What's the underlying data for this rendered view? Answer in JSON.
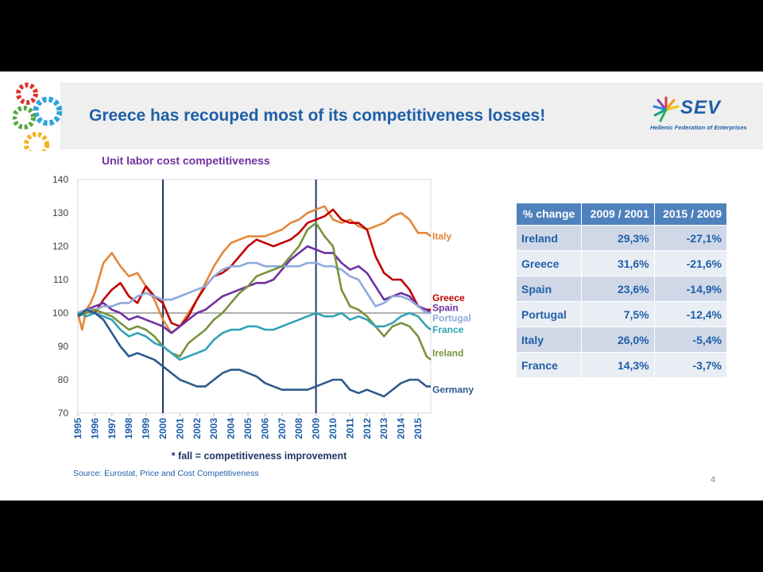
{
  "slide": {
    "title": "Greece has recouped most of its competitiveness losses!",
    "logo_text": "SEV",
    "logo_subtitle": "Hellenic Federation of Enterprises",
    "source": "Source: Eurostat, Price and Cost Competitiveness",
    "page_number": "4"
  },
  "table": {
    "headers": [
      "% change",
      "2009 / 2001",
      "2015 / 2009"
    ],
    "rows": [
      [
        "Ireland",
        "29,3%",
        "-27,1%"
      ],
      [
        "Greece",
        "31,6%",
        "-21,6%"
      ],
      [
        "Spain",
        "23,6%",
        "-14,9%"
      ],
      [
        "Portugal",
        "7,5%",
        "-12,4%"
      ],
      [
        "Italy",
        "26,0%",
        "-5,4%"
      ],
      [
        "France",
        "14,3%",
        "-3,7%"
      ]
    ]
  },
  "chart_data": {
    "type": "line",
    "title": "Unit labor cost competitiveness",
    "xlabel": "* fall = competitiveness improvement",
    "ylabel": "",
    "ylim": [
      70,
      140
    ],
    "yticks": [
      70,
      80,
      90,
      100,
      110,
      120,
      130,
      140
    ],
    "xlim": [
      1995,
      2015.75
    ],
    "xticks": [
      "1995",
      "1996",
      "1997",
      "1998",
      "1999",
      "2000",
      "2001",
      "2002",
      "2003",
      "2004",
      "2005",
      "2006",
      "2007",
      "2008",
      "2009",
      "2010",
      "2011",
      "2012",
      "2013",
      "2014",
      "2015"
    ],
    "baseline": 100,
    "vertical_lines": [
      2000,
      2009
    ],
    "grid": false,
    "legend": "labels at line ends",
    "series": [
      {
        "name": "Italy",
        "color": "#e3873a",
        "x": [
          1995,
          1995.25,
          1995.5,
          1995.75,
          1996,
          1996.5,
          1997,
          1997.5,
          1998,
          1998.5,
          1999,
          1999.5,
          2000,
          2000.5,
          2001,
          2001.5,
          2002,
          2002.5,
          2003,
          2003.5,
          2004,
          2004.5,
          2005,
          2005.5,
          2006,
          2006.5,
          2007,
          2007.5,
          2008,
          2008.5,
          2009,
          2009.5,
          2010,
          2010.5,
          2011,
          2011.5,
          2012,
          2012.5,
          2013,
          2013.5,
          2014,
          2014.5,
          2015,
          2015.5,
          2015.75
        ],
        "y": [
          100,
          95,
          101,
          103,
          106,
          115,
          118,
          114,
          111,
          112,
          108,
          104,
          98,
          94,
          96,
          100,
          104,
          109,
          114,
          118,
          121,
          122,
          123,
          123,
          123,
          124,
          125,
          127,
          128,
          130,
          131,
          132,
          128,
          127,
          128,
          126,
          125,
          126,
          127,
          129,
          130,
          128,
          124,
          124,
          123
        ]
      },
      {
        "name": "Greece",
        "color": "#c00000",
        "x": [
          1995,
          1995.5,
          1996,
          1996.5,
          1997,
          1997.5,
          1998,
          1998.5,
          1999,
          1999.5,
          2000,
          2000.5,
          2001,
          2001.5,
          2002,
          2002.5,
          2003,
          2003.5,
          2004,
          2004.5,
          2005,
          2005.5,
          2006,
          2006.5,
          2007,
          2007.5,
          2008,
          2008.5,
          2009,
          2009.5,
          2010,
          2010.5,
          2011,
          2011.5,
          2012,
          2012.5,
          2013,
          2013.5,
          2014,
          2014.5,
          2015,
          2015.5,
          2015.75
        ],
        "y": [
          100,
          101,
          100,
          104,
          107,
          109,
          105,
          103,
          108,
          105,
          103,
          97,
          96,
          99,
          104,
          108,
          111,
          112,
          114,
          117,
          120,
          122,
          121,
          120,
          121,
          122,
          124,
          127,
          128,
          129,
          131,
          128,
          127,
          127,
          125,
          117,
          112,
          110,
          110,
          107,
          102,
          101,
          101
        ]
      },
      {
        "name": "Spain",
        "color": "#7030a0",
        "x": [
          1995,
          1995.5,
          1996,
          1996.5,
          1997,
          1997.5,
          1998,
          1998.5,
          1999,
          1999.5,
          2000,
          2000.5,
          2001,
          2001.5,
          2002,
          2002.5,
          2003,
          2003.5,
          2004,
          2004.5,
          2005,
          2005.5,
          2006,
          2006.5,
          2007,
          2007.5,
          2008,
          2008.5,
          2009,
          2009.5,
          2010,
          2010.5,
          2011,
          2011.5,
          2012,
          2012.5,
          2013,
          2013.5,
          2014,
          2014.5,
          2015,
          2015.5,
          2015.75
        ],
        "y": [
          100,
          101,
          102,
          103,
          101,
          100,
          98,
          99,
          98,
          97,
          96,
          94,
          96,
          98,
          100,
          101,
          103,
          105,
          106,
          107,
          108,
          109,
          109,
          110,
          113,
          116,
          118,
          120,
          119,
          118,
          118,
          115,
          113,
          114,
          112,
          108,
          104,
          105,
          106,
          105,
          102,
          101,
          100
        ]
      },
      {
        "name": "Portugal",
        "color": "#8eaadb",
        "x": [
          1995,
          1995.5,
          1996,
          1996.5,
          1997,
          1997.5,
          1998,
          1998.5,
          1999,
          1999.5,
          2000,
          2000.5,
          2001,
          2001.5,
          2002,
          2002.5,
          2003,
          2003.5,
          2004,
          2004.5,
          2005,
          2005.5,
          2006,
          2006.5,
          2007,
          2007.5,
          2008,
          2008.5,
          2009,
          2009.5,
          2010,
          2010.5,
          2011,
          2011.5,
          2012,
          2012.5,
          2013,
          2013.5,
          2014,
          2014.5,
          2015,
          2015.5,
          2015.75
        ],
        "y": [
          100,
          101,
          101,
          102,
          102,
          103,
          103,
          105,
          106,
          105,
          104,
          104,
          105,
          106,
          107,
          108,
          111,
          113,
          114,
          114,
          115,
          115,
          114,
          114,
          114,
          114,
          114,
          115,
          115,
          114,
          114,
          113,
          111,
          110,
          106,
          102,
          103,
          105,
          105,
          104,
          102,
          100,
          100
        ]
      },
      {
        "name": "Ireland",
        "color": "#77933c",
        "x": [
          1995,
          1995.5,
          1996,
          1996.5,
          1997,
          1997.5,
          1998,
          1998.5,
          1999,
          1999.5,
          2000,
          2000.5,
          2001,
          2001.5,
          2002,
          2002.5,
          2003,
          2003.5,
          2004,
          2004.5,
          2005,
          2005.5,
          2006,
          2006.5,
          2007,
          2007.5,
          2008,
          2008.5,
          2009,
          2009.5,
          2010,
          2010.5,
          2011,
          2011.5,
          2012,
          2012.5,
          2013,
          2013.5,
          2014,
          2014.5,
          2015,
          2015.5,
          2015.75
        ],
        "y": [
          99,
          100,
          101,
          100,
          99,
          97,
          95,
          96,
          95,
          93,
          90,
          88,
          87,
          91,
          93,
          95,
          98,
          100,
          103,
          106,
          108,
          111,
          112,
          113,
          114,
          117,
          120,
          125,
          127,
          123,
          120,
          107,
          102,
          101,
          99,
          96,
          93,
          96,
          97,
          96,
          93,
          87,
          86
        ]
      },
      {
        "name": "France",
        "color": "#31a2b8",
        "x": [
          1995,
          1995.5,
          1996,
          1996.5,
          1997,
          1997.5,
          1998,
          1998.5,
          1999,
          1999.5,
          2000,
          2000.5,
          2001,
          2001.5,
          2002,
          2002.5,
          2003,
          2003.5,
          2004,
          2004.5,
          2005,
          2005.5,
          2006,
          2006.5,
          2007,
          2007.5,
          2008,
          2008.5,
          2009,
          2009.5,
          2010,
          2010.5,
          2011,
          2011.5,
          2012,
          2012.5,
          2013,
          2013.5,
          2014,
          2014.5,
          2015,
          2015.5,
          2015.75
        ],
        "y": [
          100,
          99,
          100,
          99,
          98,
          95,
          93,
          94,
          93,
          91,
          90,
          88,
          86,
          87,
          88,
          89,
          92,
          94,
          95,
          95,
          96,
          96,
          95,
          95,
          96,
          97,
          98,
          99,
          100,
          99,
          99,
          100,
          98,
          99,
          98,
          96,
          96,
          97,
          99,
          100,
          99,
          96,
          95
        ]
      },
      {
        "name": "Germany",
        "color": "#2e5a8c",
        "x": [
          1995,
          1995.5,
          1996,
          1996.5,
          1997,
          1997.5,
          1998,
          1998.5,
          1999,
          1999.5,
          2000,
          2000.5,
          2001,
          2001.5,
          2002,
          2002.5,
          2003,
          2003.5,
          2004,
          2004.5,
          2005,
          2005.5,
          2006,
          2006.5,
          2007,
          2007.5,
          2008,
          2008.5,
          2009,
          2009.5,
          2010,
          2010.5,
          2011,
          2011.5,
          2012,
          2012.5,
          2013,
          2013.5,
          2014,
          2014.5,
          2015,
          2015.5,
          2015.75
        ],
        "y": [
          99,
          101,
          100,
          98,
          94,
          90,
          87,
          88,
          87,
          86,
          84,
          82,
          80,
          79,
          78,
          78,
          80,
          82,
          83,
          83,
          82,
          81,
          79,
          78,
          77,
          77,
          77,
          77,
          78,
          79,
          80,
          80,
          77,
          76,
          77,
          76,
          75,
          77,
          79,
          80,
          80,
          78,
          78
        ]
      }
    ]
  }
}
